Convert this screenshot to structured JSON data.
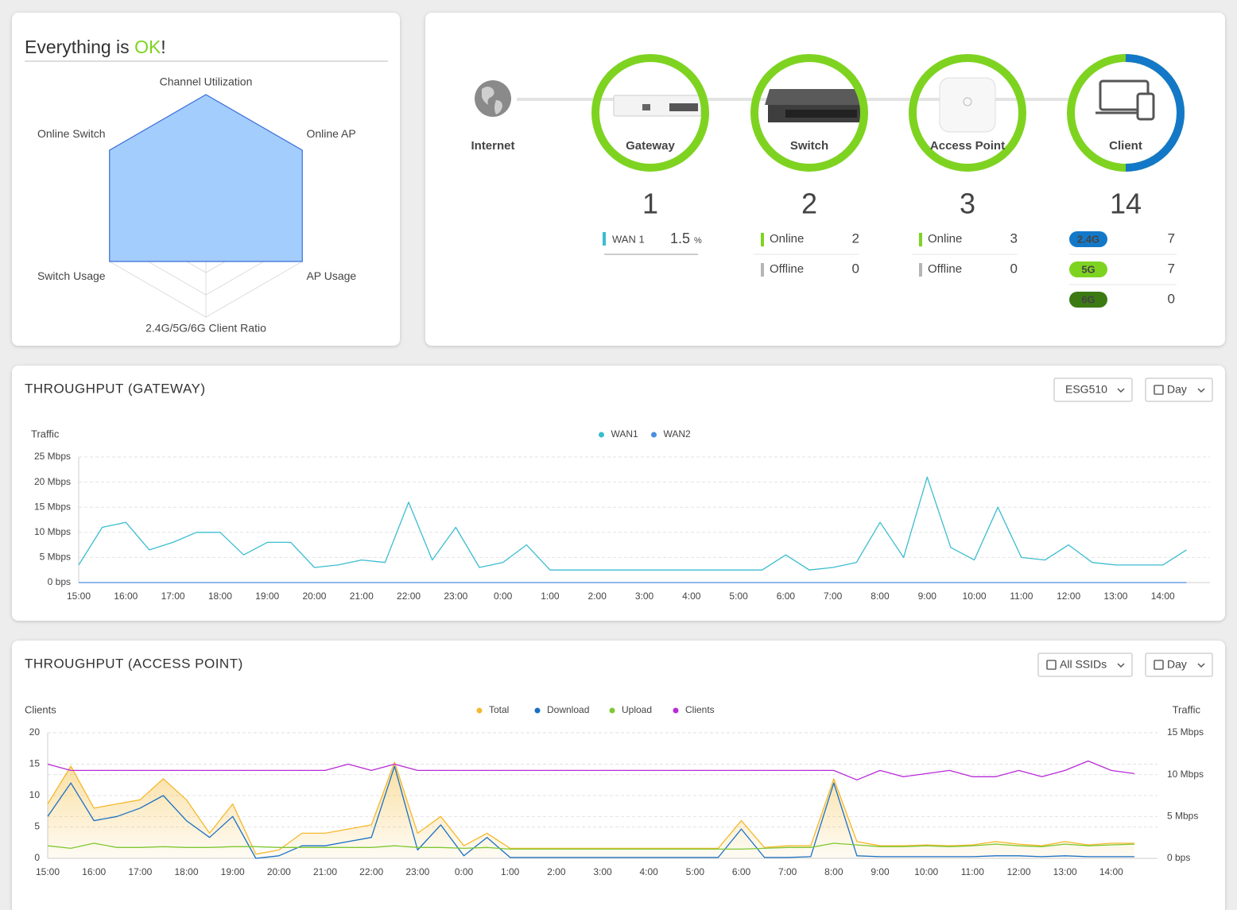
{
  "status": {
    "prefix": "Everything is ",
    "ok": "OK",
    "suffix": "!"
  },
  "topology": {
    "internet": "Internet",
    "nodes": [
      {
        "label": "Gateway",
        "count": 1
      },
      {
        "label": "Switch",
        "count": 2
      },
      {
        "label": "Access Point",
        "count": 3
      },
      {
        "label": "Client",
        "count": 14
      }
    ]
  },
  "gateway_detail": {
    "label": "WAN 1",
    "value": 1.5,
    "unit": "%"
  },
  "switch_detail": {
    "rows": [
      {
        "label": "Online",
        "value": 2
      },
      {
        "label": "Offline",
        "value": 0
      }
    ]
  },
  "ap_detail": {
    "rows": [
      {
        "label": "Online",
        "value": 3
      },
      {
        "label": "Offline",
        "value": 0
      }
    ]
  },
  "client_detail": {
    "rows": [
      {
        "label": "2.4G",
        "value": 7,
        "color": "#1478c8"
      },
      {
        "label": "5G",
        "value": 7,
        "color": "#7ed321"
      },
      {
        "label": "6G",
        "value": 0,
        "color": "#3b7a12"
      }
    ]
  },
  "chart_data": [
    {
      "type": "radar",
      "labels": [
        "Channel Utilization",
        "Online AP",
        "AP Usage",
        "2.4G/5G/6G Client Ratio",
        "Switch Usage",
        "Online Switch"
      ],
      "values": [
        100,
        100,
        100,
        50,
        100,
        100
      ],
      "rlim": [
        0,
        100
      ],
      "rings": 5,
      "color": "#a3cdfc",
      "edge_color": "#3a6fd8"
    },
    {
      "type": "line",
      "title": "THROUGHPUT (GATEWAY)",
      "controls": [
        "ESG510",
        "Day"
      ],
      "y_label": "Traffic",
      "categories": [
        "15:00",
        null,
        "16:00",
        null,
        "17:00",
        null,
        "18:00",
        null,
        "19:00",
        null,
        "20:00",
        null,
        "21:00",
        null,
        "22:00",
        null,
        "23:00",
        null,
        "0:00",
        null,
        "1:00",
        null,
        "2:00",
        null,
        "3:00",
        null,
        "4:00",
        null,
        "5:00",
        null,
        "6:00",
        null,
        "7:00",
        null,
        "8:00",
        null,
        "9:00",
        null,
        "10:00",
        null,
        "11:00",
        null,
        "12:00",
        null,
        "13:00",
        null,
        "14:00",
        null
      ],
      "series": [
        {
          "name": "WAN1",
          "color": "#3bbdd0",
          "values": [
            3.5,
            11,
            12,
            6.5,
            8,
            10,
            10,
            5.5,
            8,
            8,
            3,
            3.5,
            4.5,
            4,
            16,
            4.5,
            11,
            3,
            4,
            7.5,
            2.5,
            2.5,
            2.5,
            2.5,
            2.5,
            2.5,
            2.5,
            2.5,
            2.5,
            2.5,
            5.5,
            2.5,
            3,
            4,
            12,
            5,
            21,
            7,
            4.5,
            15,
            5,
            4.5,
            7.5,
            4,
            3.5,
            3.5,
            3.5,
            6.5
          ]
        },
        {
          "name": "WAN2",
          "color": "#4a8ee0",
          "values": [
            0,
            0,
            0,
            0,
            0,
            0,
            0,
            0,
            0,
            0,
            0,
            0,
            0,
            0,
            0,
            0,
            0,
            0,
            0,
            0,
            0,
            0,
            0,
            0,
            0,
            0,
            0,
            0,
            0,
            0,
            0,
            0,
            0,
            0,
            0,
            0,
            0,
            0,
            0,
            0,
            0,
            0,
            0,
            0,
            0,
            0,
            0,
            0
          ]
        }
      ],
      "ylim": [
        0,
        25
      ],
      "yticks": [
        {
          "value": 0,
          "label": "0 bps"
        },
        {
          "value": 5,
          "label": "5 Mbps"
        },
        {
          "value": 10,
          "label": "10 Mbps"
        },
        {
          "value": 15,
          "label": "15 Mbps"
        },
        {
          "value": 20,
          "label": "20 Mbps"
        },
        {
          "value": 25,
          "label": "25 Mbps"
        }
      ],
      "grid": true,
      "legend": "top"
    },
    {
      "type": "line",
      "title": "THROUGHPUT (ACCESS POINT)",
      "controls": [
        "All SSIDs",
        "Day"
      ],
      "y_label": "Clients",
      "y2_label": "Traffic",
      "categories": [
        "15:00",
        null,
        "16:00",
        null,
        "17:00",
        null,
        "18:00",
        null,
        "19:00",
        null,
        "20:00",
        null,
        "21:00",
        null,
        "22:00",
        null,
        "23:00",
        null,
        "0:00",
        null,
        "1:00",
        null,
        "2:00",
        null,
        "3:00",
        null,
        "4:00",
        null,
        "5:00",
        null,
        "6:00",
        null,
        "7:00",
        null,
        "8:00",
        null,
        "9:00",
        null,
        "10:00",
        null,
        "11:00",
        null,
        "12:00",
        null,
        "13:00",
        null,
        "14:00",
        null
      ],
      "series": [
        {
          "name": "Total",
          "color": "#f5b82e",
          "axis": "y2",
          "area": true,
          "values": [
            6.5,
            11,
            6,
            6.5,
            7,
            9.5,
            7,
            3,
            6.5,
            0.5,
            1,
            3,
            3,
            3.5,
            4,
            11.5,
            3,
            5,
            1.5,
            3,
            1.2,
            1.2,
            1.2,
            1.2,
            1.2,
            1.2,
            1.2,
            1.2,
            1.2,
            1.2,
            4.5,
            1.3,
            1.5,
            1.5,
            9.5,
            2,
            1.5,
            1.5,
            1.6,
            1.5,
            1.6,
            2,
            1.7,
            1.5,
            2,
            1.6,
            1.8,
            1.8
          ]
        },
        {
          "name": "Download",
          "color": "#1a6fc4",
          "axis": "y2",
          "values": [
            5,
            9,
            4.5,
            5,
            6,
            7.5,
            4.5,
            2.5,
            5,
            0,
            0.3,
            1.5,
            1.5,
            2,
            2.5,
            11,
            1,
            4,
            0.3,
            2.5,
            0.1,
            0.1,
            0.1,
            0.1,
            0.1,
            0.1,
            0.1,
            0.1,
            0.1,
            0.1,
            3.5,
            0.1,
            0.1,
            0.2,
            9,
            0.3,
            0.2,
            0.2,
            0.2,
            0.2,
            0.2,
            0.3,
            0.3,
            0.2,
            0.3,
            0.2,
            0.2,
            0.2
          ]
        },
        {
          "name": "Upload",
          "color": "#7ec832",
          "axis": "y2",
          "values": [
            1.5,
            1.2,
            1.8,
            1.3,
            1.3,
            1.4,
            1.3,
            1.3,
            1.4,
            1.4,
            1.3,
            1.3,
            1.3,
            1.3,
            1.3,
            1.5,
            1.3,
            1.3,
            1.2,
            1.3,
            1.1,
            1.1,
            1.1,
            1.1,
            1.1,
            1.1,
            1.1,
            1.1,
            1.1,
            1.1,
            1.1,
            1.2,
            1.3,
            1.3,
            1.8,
            1.6,
            1.4,
            1.4,
            1.5,
            1.4,
            1.5,
            1.7,
            1.5,
            1.4,
            1.7,
            1.5,
            1.6,
            1.7
          ]
        },
        {
          "name": "Clients",
          "color": "#b82ad8",
          "values": [
            15,
            14,
            14,
            14,
            14,
            14,
            14,
            14,
            14,
            14,
            14,
            14,
            14,
            15,
            14,
            15,
            14,
            14,
            14,
            14,
            14,
            14,
            14,
            14,
            14,
            14,
            14,
            14,
            14,
            14,
            14,
            14,
            14,
            14,
            14,
            12.5,
            14,
            13,
            13.5,
            14,
            13,
            13,
            14,
            13,
            14,
            15.5,
            14,
            13.5
          ]
        }
      ],
      "ylim": [
        0,
        20
      ],
      "yticks": [
        0,
        5,
        10,
        15,
        20
      ],
      "y2lim": [
        0,
        15
      ],
      "y2ticks": [
        {
          "value": 0,
          "label": "0 bps"
        },
        {
          "value": 5,
          "label": "5 Mbps"
        },
        {
          "value": 10,
          "label": "10 Mbps"
        },
        {
          "value": 15,
          "label": "15 Mbps"
        }
      ],
      "grid": true,
      "legend": "top"
    }
  ]
}
